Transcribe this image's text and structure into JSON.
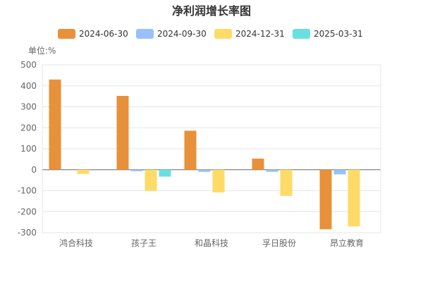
{
  "chart_data": {
    "type": "bar",
    "title": "净利润增长率图",
    "unit_label": "单位:%",
    "categories": [
      "鸿合科技",
      "孩子王",
      "和晶科技",
      "孚日股份",
      "昂立教育"
    ],
    "series": [
      {
        "name": "2024-06-30",
        "color": "#e8913a",
        "values": [
          430,
          352,
          186,
          53,
          -284
        ]
      },
      {
        "name": "2024-09-30",
        "color": "#9ac1f7",
        "values": [
          0,
          -7,
          -10,
          -10,
          -22
        ]
      },
      {
        "name": "2024-12-31",
        "color": "#fedb66",
        "values": [
          -20,
          -100,
          -108,
          -125,
          -270
        ]
      },
      {
        "name": "2025-03-31",
        "color": "#69e0e0",
        "values": [
          0,
          -33,
          0,
          0,
          0
        ]
      }
    ],
    "yticks": [
      500,
      400,
      300,
      200,
      100,
      0,
      -100,
      -200,
      -300
    ],
    "ylim": [
      -300,
      500
    ],
    "grid": true,
    "legend_position": "top-center"
  }
}
